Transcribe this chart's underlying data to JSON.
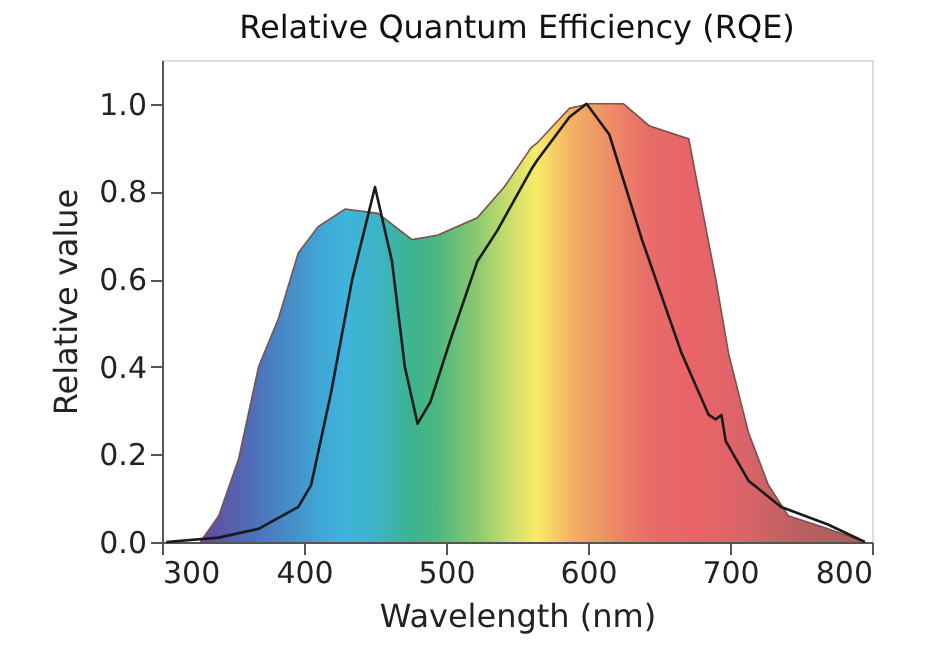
{
  "chart_data": {
    "type": "area",
    "title": "Relative Quantum Efficiency (RQE)",
    "xlabel": "Wavelength (nm)",
    "ylabel": "Relative value",
    "xlim": [
      300,
      800
    ],
    "xticks": [
      300,
      400,
      500,
      600,
      700,
      800
    ],
    "ylim": [
      0,
      1.1
    ],
    "yticks": [
      {
        "value": 0,
        "label": "0.0"
      },
      {
        "value": 0.2,
        "label": "0.2"
      },
      {
        "value": 0.4,
        "label": "0.4"
      },
      {
        "value": 0.6,
        "label": "0.6"
      },
      {
        "value": 0.8,
        "label": "0.8"
      },
      {
        "value": 1.0,
        "label": "1.0"
      }
    ],
    "grid": false,
    "series": [
      {
        "colors": [
          "#6a4c9c",
          "#5e56a8",
          "#5564b0",
          "#4c74bc",
          "#4884c4",
          "#4494cc",
          "#40a4d4",
          "#3eb4dc",
          "#3cb4c4",
          "#3cb48c",
          "#4cb880",
          "#8cc870",
          "#c0dc6c",
          "#f0e868",
          "#f8ec68",
          "#f4b464",
          "#f0a064",
          "#ec8068",
          "#e86c68",
          "#e86468",
          "#e86468",
          "#e46468",
          "#e06468",
          "#d86468",
          "#cc6264",
          "#c06064",
          "#b06060",
          "#a86060"
        ],
        "x": [
          327,
          340,
          354,
          368,
          382,
          396,
          410,
          429,
          452,
          476,
          494,
          522,
          541,
          560,
          564,
          587,
          601,
          625,
          643,
          671,
          678,
          690,
          699,
          713,
          727,
          741,
          769,
          795
        ],
        "values": [
          0,
          0.06,
          0.19,
          0.4,
          0.51,
          0.66,
          0.72,
          0.76,
          0.75,
          0.69,
          0.7,
          0.74,
          0.81,
          0.9,
          0.91,
          0.99,
          1.0,
          1.0,
          0.95,
          0.92,
          0.8,
          0.6,
          0.43,
          0.25,
          0.13,
          0.06,
          0.03,
          0
        ]
      },
      {
        "type": "line",
        "color": "#1a1a1a",
        "x": [
          303,
          340,
          368,
          396,
          405,
          419,
          434,
          450,
          462,
          471,
          480,
          489,
          503,
          522,
          536,
          560,
          564,
          587,
          599,
          615,
          638,
          666,
          685,
          690,
          694,
          697,
          713,
          736,
          769,
          795
        ],
        "values": [
          0,
          0.01,
          0.03,
          0.08,
          0.13,
          0.34,
          0.6,
          0.81,
          0.64,
          0.4,
          0.27,
          0.32,
          0.46,
          0.64,
          0.71,
          0.85,
          0.87,
          0.97,
          1.0,
          0.93,
          0.69,
          0.43,
          0.29,
          0.28,
          0.29,
          0.23,
          0.14,
          0.08,
          0.04,
          0
        ]
      }
    ]
  }
}
